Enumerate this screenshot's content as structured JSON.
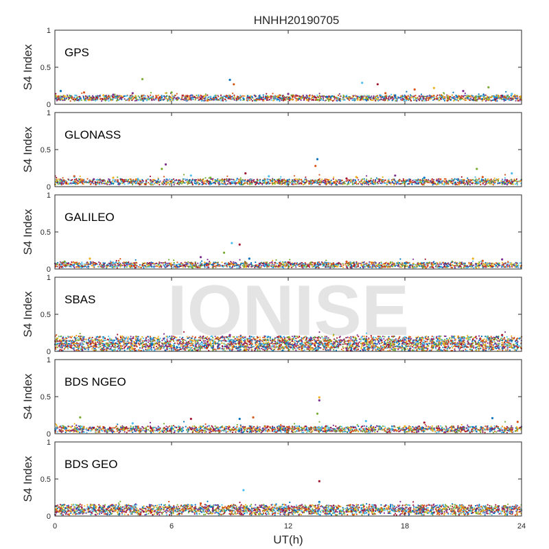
{
  "chart_data": {
    "type": "scatter",
    "title": "HNHH20190705",
    "xlabel": "UT(h)",
    "ylabel": "S4 Index",
    "xlim": [
      0,
      24
    ],
    "ylim": [
      0,
      1
    ],
    "xticks": [
      0,
      6,
      12,
      18,
      24
    ],
    "yticks": [
      0,
      0.5,
      1
    ],
    "xtick_labels": [
      "0",
      "6",
      "12",
      "18",
      "24"
    ],
    "ytick_labels": [
      "0",
      "0.5",
      "1"
    ],
    "watermark": "IONISE",
    "colors": [
      "#0072bd",
      "#d95319",
      "#edb120",
      "#7e2f8e",
      "#77ac30",
      "#4dbeee",
      "#a2142f"
    ],
    "panels": [
      {
        "label": "GPS",
        "series": [
          {
            "values": [
              [
                0.3,
                0.18
              ],
              [
                1.5,
                0.16
              ],
              [
                2.5,
                0.12
              ],
              [
                4.0,
                0.15
              ],
              [
                4.5,
                0.34
              ],
              [
                5.5,
                0.1
              ],
              [
                7.5,
                0.08
              ],
              [
                9.0,
                0.33
              ],
              [
                9.2,
                0.27
              ],
              [
                11,
                0.1
              ],
              [
                12,
                0.14
              ],
              [
                13.5,
                0.06
              ],
              [
                15.8,
                0.29
              ],
              [
                16.6,
                0.27
              ],
              [
                17.5,
                0.12
              ],
              [
                18.5,
                0.2
              ],
              [
                19.5,
                0.22
              ],
              [
                21,
                0.18
              ],
              [
                22.3,
                0.23
              ],
              [
                23.5,
                0.14
              ]
            ],
            "base": 0.09
          },
          {
            "values": [
              [
                0.5,
                0.11
              ],
              [
                3,
                0.13
              ],
              [
                6,
                0.16
              ],
              [
                8,
                0.1
              ],
              [
                10,
                0.09
              ],
              [
                14,
                0.1
              ],
              [
                17,
                0.15
              ],
              [
                20,
                0.09
              ],
              [
                23,
                0.1
              ]
            ],
            "base": 0.08
          }
        ]
      },
      {
        "label": "GLONASS",
        "series": [
          {
            "values": [
              [
                1.0,
                0.14
              ],
              [
                3.0,
                0.12
              ],
              [
                5.7,
                0.3
              ],
              [
                5.5,
                0.24
              ],
              [
                7.0,
                0.15
              ],
              [
                9.8,
                0.18
              ],
              [
                13.5,
                0.37
              ],
              [
                13.4,
                0.28
              ],
              [
                15.5,
                0.13
              ],
              [
                17.5,
                0.15
              ],
              [
                21.7,
                0.24
              ],
              [
                23.5,
                0.18
              ]
            ],
            "base": 0.07
          },
          {
            "values": [
              [
                2,
                0.1
              ],
              [
                8,
                0.12
              ],
              [
                11,
                0.14
              ],
              [
                15,
                0.11
              ],
              [
                19,
                0.12
              ],
              [
                22,
                0.13
              ]
            ],
            "base": 0.06
          }
        ]
      },
      {
        "label": "GALILEO",
        "series": [
          {
            "values": [
              [
                1.8,
                0.14
              ],
              [
                7.5,
                0.16
              ],
              [
                8.7,
                0.22
              ],
              [
                9.1,
                0.35
              ],
              [
                9.5,
                0.33
              ],
              [
                10,
                0.14
              ],
              [
                15,
                0.1
              ],
              [
                21.5,
                0.14
              ],
              [
                23,
                0.13
              ]
            ],
            "base": 0.06
          },
          {
            "values": [
              [
                0.5,
                0.1
              ],
              [
                3,
                0.08
              ],
              [
                12,
                0.09
              ],
              [
                18,
                0.08
              ],
              [
                22,
                0.11
              ]
            ],
            "base": 0.05
          }
        ]
      },
      {
        "label": "SBAS",
        "series": [
          {
            "values": [
              [
                9,
                0.22
              ],
              [
                12,
                0.19
              ],
              [
                18,
                0.19
              ],
              [
                23,
                0.22
              ]
            ],
            "base": 0.17
          },
          {
            "values": [
              [
                3,
                0.13
              ],
              [
                10,
                0.13
              ],
              [
                16,
                0.14
              ],
              [
                22,
                0.14
              ]
            ],
            "base": 0.12
          },
          {
            "values": [
              [
                5,
                0.09
              ],
              [
                14,
                0.09
              ],
              [
                20,
                0.1
              ]
            ],
            "base": 0.08
          },
          {
            "values": [
              [
                4,
                0.04
              ],
              [
                15,
                0.04
              ]
            ],
            "base": 0.04
          }
        ]
      },
      {
        "label": "BDS NGEO",
        "series": [
          {
            "values": [
              [
                1.3,
                0.22
              ],
              [
                4,
                0.14
              ],
              [
                7,
                0.2
              ],
              [
                9.5,
                0.2
              ],
              [
                10.2,
                0.22
              ],
              [
                13.6,
                0.49
              ],
              [
                13.6,
                0.45
              ],
              [
                13.5,
                0.27
              ],
              [
                16,
                0.17
              ],
              [
                19,
                0.15
              ],
              [
                22.5,
                0.21
              ],
              [
                23.8,
                0.16
              ]
            ],
            "base": 0.07
          },
          {
            "values": [
              [
                2,
                0.08
              ],
              [
                6,
                0.07
              ],
              [
                12,
                0.09
              ],
              [
                18,
                0.1
              ],
              [
                21,
                0.09
              ]
            ],
            "base": 0.05
          }
        ]
      },
      {
        "label": "BDS GEO",
        "series": [
          {
            "values": [
              [
                9.7,
                0.35
              ],
              [
                13.6,
                0.47
              ],
              [
                13.6,
                0.19
              ],
              [
                7.5,
                0.17
              ]
            ],
            "base": 0.12
          },
          {
            "values": [
              [
                2,
                0.1
              ],
              [
                12,
                0.1
              ],
              [
                20,
                0.1
              ]
            ],
            "base": 0.09
          },
          {
            "values": [
              [
                5,
                0.07
              ],
              [
                15,
                0.06
              ]
            ],
            "base": 0.05
          }
        ]
      }
    ]
  }
}
